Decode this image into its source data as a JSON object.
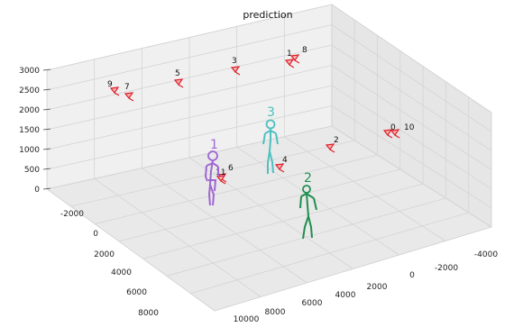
{
  "chart_data": {
    "type": "scatter",
    "projection": "3d",
    "title": "prediction",
    "axes": {
      "x": {
        "ticks": [
          "-4000",
          "-2000",
          "0",
          "2000",
          "4000",
          "6000",
          "8000",
          "10000"
        ]
      },
      "y": {
        "ticks": [
          "-2000",
          "0",
          "2000",
          "4000",
          "6000",
          "8000"
        ]
      },
      "z": {
        "ticks": [
          "0",
          "500",
          "1000",
          "1500",
          "2000",
          "2500",
          "3000"
        ]
      }
    },
    "grid": true,
    "cameras": [
      "0",
      "1",
      "2",
      "3",
      "4",
      "5",
      "6",
      "7",
      "8",
      "9",
      "10",
      "11"
    ],
    "people": [
      {
        "label": "1",
        "color": "#a066d3"
      },
      {
        "label": "2",
        "color": "#1f8f4e"
      },
      {
        "label": "3",
        "color": "#4fc0c0"
      }
    ],
    "camera_color": "#e0202a"
  }
}
